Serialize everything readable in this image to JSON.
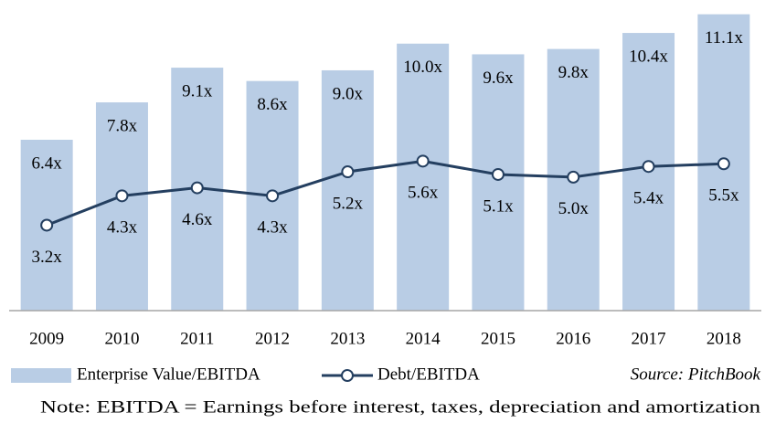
{
  "chart_data": {
    "type": "bar",
    "categories": [
      "2009",
      "2010",
      "2011",
      "2012",
      "2013",
      "2014",
      "2015",
      "2016",
      "2017",
      "2018"
    ],
    "series": [
      {
        "name": "Enterprise Value/EBITDA",
        "type": "bar",
        "color": "#b9cde5",
        "values": [
          6.4,
          7.8,
          9.1,
          8.6,
          9.0,
          10.0,
          9.6,
          9.8,
          10.4,
          11.1
        ],
        "value_labels": [
          "6.4x",
          "7.8x",
          "9.1x",
          "8.6x",
          "9.0x",
          "10.0x",
          "9.6x",
          "9.8x",
          "10.4x",
          "11.1x"
        ]
      },
      {
        "name": "Debt/EBITDA",
        "type": "line",
        "color": "#243f60",
        "values": [
          3.2,
          4.3,
          4.6,
          4.3,
          5.2,
          5.6,
          5.1,
          5.0,
          5.4,
          5.5
        ],
        "value_labels": [
          "3.2x",
          "4.3x",
          "4.6x",
          "4.3x",
          "5.2x",
          "5.6x",
          "5.1x",
          "5.0x",
          "5.4x",
          "5.5x"
        ]
      }
    ],
    "ylim": [
      0,
      11.6
    ],
    "source": "Source: PitchBook",
    "note": "Note: EBITDA = Earnings before interest, taxes, depreciation and amortization"
  }
}
